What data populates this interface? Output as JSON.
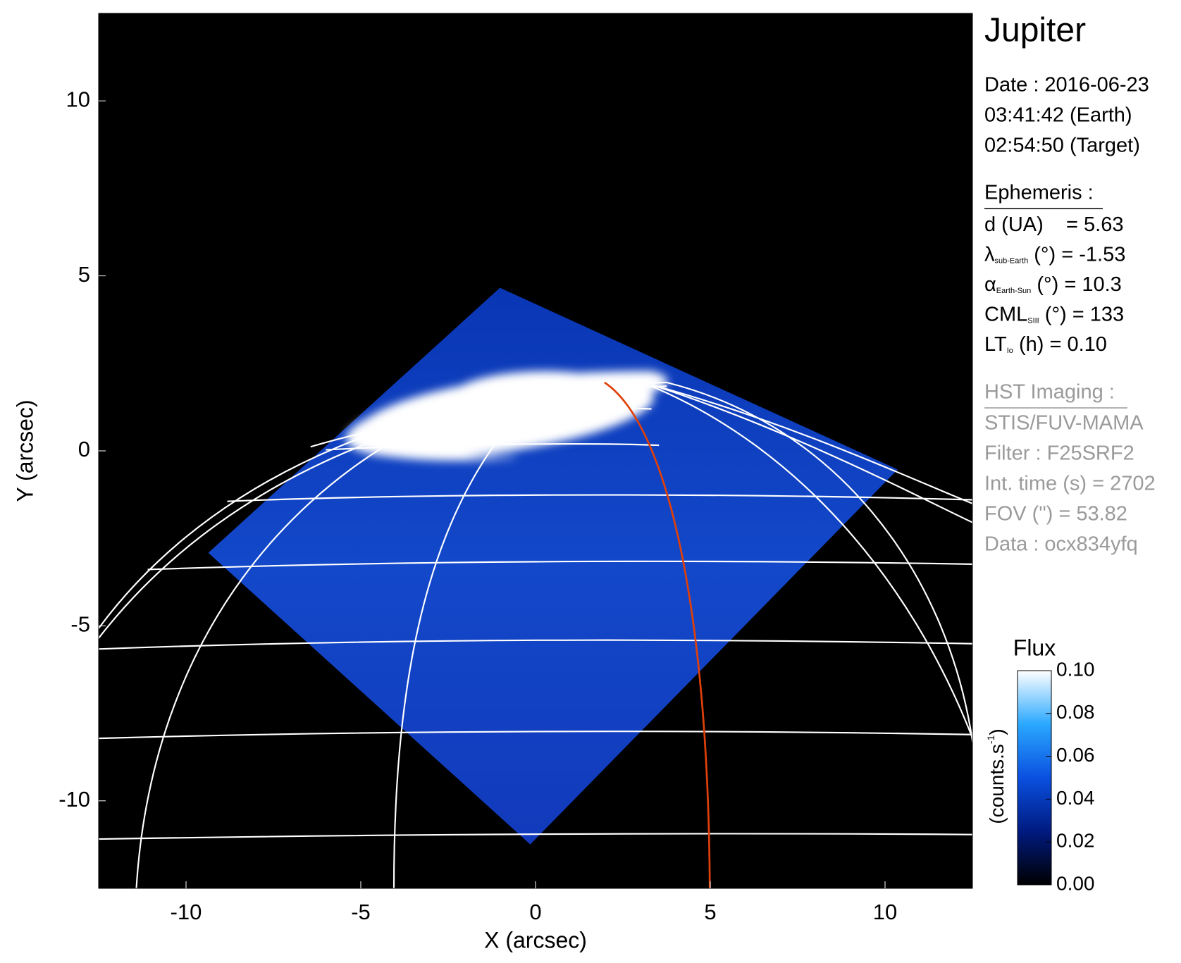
{
  "chart_data": {
    "type": "image",
    "xlabel": "X (arcsec)",
    "ylabel": "Y (arcsec)",
    "xlim": [
      -12.5,
      12.5
    ],
    "ylim": [
      -12.5,
      12.5
    ],
    "xticks": [
      -10,
      -5,
      0,
      5,
      10
    ],
    "yticks": [
      -10,
      -5,
      0,
      5,
      10
    ],
    "panel_title": "Jupiter",
    "date_lines": [
      "Date : 2016-06-23",
      "03:41:42 (Earth)",
      "02:54:50 (Target)"
    ],
    "ephemeris_heading": "Ephemeris :",
    "ephemeris": [
      {
        "text": "d (UA)    = 5.63"
      },
      {
        "text": "λ",
        "sub": "sub-Earth",
        "after": " (°) = -1.53"
      },
      {
        "text": "α",
        "sub": "Earth-Sun",
        "after": " (°) = 10.3"
      },
      {
        "text": "CML",
        "sub": "SIII",
        "after": " (°) = 133"
      },
      {
        "text": "LT",
        "sub": "Io",
        "after": " (h) = 0.10"
      }
    ],
    "imaging_heading": "HST Imaging :",
    "imaging": [
      "STIS/FUV-MAMA",
      "Filter : F25SRF2",
      "Int. time (s) = 2702",
      "FOV (\") = 53.82",
      "Data : ocx834yfq"
    ],
    "colorbar": {
      "title": "Flux",
      "label": "(counts.s",
      "label_sup": "-1",
      "label_end": ")",
      "lim": [
        0,
        0.1
      ],
      "ticks": [
        {
          "value": 0,
          "label": "0.00"
        },
        0.02,
        0.04,
        0.06,
        0.08,
        {
          "value": 0.1,
          "label": "0.10"
        }
      ]
    }
  }
}
